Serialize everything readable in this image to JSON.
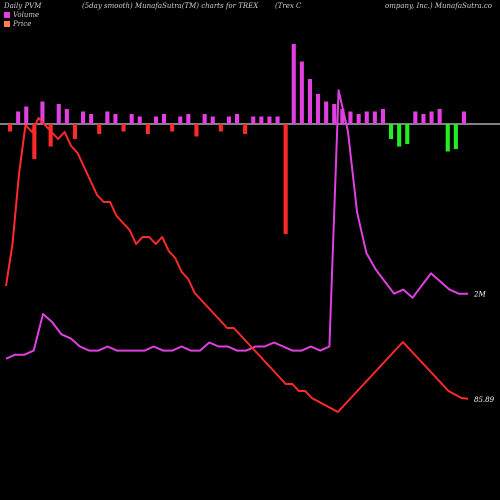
{
  "header": {
    "col1": "Daily PVM",
    "col2": "(5day smooth) MunafaSutra(TM) charts for TREX",
    "col3": "(Trex C",
    "col4": "ompany, Inc.) MunafaSutra.co"
  },
  "legend": [
    {
      "label": "Volume",
      "color": "#e040e0"
    },
    {
      "label": "Price",
      "color": "#ff7f50"
    }
  ],
  "colors": {
    "price_line": "#ff2a2a",
    "volume_line": "#e040e0",
    "bar_up": "#e040e0",
    "bar_down_red": "#ff2a2a",
    "bar_down_green": "#22ee22",
    "zero_line": "#ffffff",
    "background": "#000000"
  },
  "chart_data": {
    "type": "line",
    "series": [
      {
        "name": "Price",
        "last_label": "85.89",
        "values": [
          102,
          108,
          118,
          125,
          124,
          126,
          125,
          124,
          123,
          124,
          122,
          121,
          119,
          117,
          115,
          114,
          114,
          112,
          111,
          110,
          108,
          109,
          109,
          108,
          109,
          107,
          106,
          104,
          103,
          101,
          100,
          99,
          98,
          97,
          96,
          96,
          95,
          94,
          93,
          92,
          91,
          90,
          89,
          88,
          88,
          87,
          87,
          86,
          85.5,
          85,
          84.5,
          84,
          85,
          86,
          87,
          88,
          89,
          90,
          91,
          92,
          93,
          94,
          93,
          92,
          91,
          90,
          89,
          88,
          87,
          86.5,
          86,
          85.89
        ]
      },
      {
        "name": "Volume",
        "last_label": "2M",
        "values": [
          0.4,
          0.5,
          0.5,
          0.6,
          1.5,
          1.3,
          1.0,
          0.9,
          0.7,
          0.6,
          0.6,
          0.7,
          0.6,
          0.6,
          0.6,
          0.6,
          0.7,
          0.6,
          0.6,
          0.7,
          0.6,
          0.6,
          0.8,
          0.7,
          0.7,
          0.6,
          0.6,
          0.7,
          0.7,
          0.8,
          0.7,
          0.6,
          0.6,
          0.7,
          0.6,
          0.7,
          7.0,
          6.0,
          4.0,
          3.0,
          2.6,
          2.3,
          2.0,
          2.1,
          1.9,
          2.2,
          2.5,
          2.3,
          2.1,
          2.0,
          2.0
        ]
      }
    ],
    "bars": [
      {
        "v": -3
      },
      {
        "v": 5
      },
      {
        "v": 7
      },
      {
        "v": -14
      },
      {
        "v": 9
      },
      {
        "v": -9
      },
      {
        "v": 8
      },
      {
        "v": 6
      },
      {
        "v": -6
      },
      {
        "v": 5
      },
      {
        "v": 4
      },
      {
        "v": -4
      },
      {
        "v": 5
      },
      {
        "v": 4
      },
      {
        "v": -3
      },
      {
        "v": 4
      },
      {
        "v": 3
      },
      {
        "v": -4
      },
      {
        "v": 3
      },
      {
        "v": 4
      },
      {
        "v": -3
      },
      {
        "v": 3
      },
      {
        "v": 4
      },
      {
        "v": -5
      },
      {
        "v": 4
      },
      {
        "v": 3
      },
      {
        "v": -3
      },
      {
        "v": 3
      },
      {
        "v": 4
      },
      {
        "v": -4
      },
      {
        "v": 3
      },
      {
        "v": 3
      },
      {
        "v": 3
      },
      {
        "v": 3
      },
      {
        "v": -44
      },
      {
        "v": 32
      },
      {
        "v": 25
      },
      {
        "v": 18
      },
      {
        "v": 12
      },
      {
        "v": 9
      },
      {
        "v": 8
      },
      {
        "v": 6
      },
      {
        "v": 5
      },
      {
        "v": 4
      },
      {
        "v": 5
      },
      {
        "v": 5
      },
      {
        "v": 6
      },
      {
        "v": -6
      },
      {
        "v": -9
      },
      {
        "v": -8
      },
      {
        "v": 5
      },
      {
        "v": 4
      },
      {
        "v": 5
      },
      {
        "v": 6
      },
      {
        "v": -11
      },
      {
        "v": -10
      },
      {
        "v": 5
      }
    ]
  }
}
